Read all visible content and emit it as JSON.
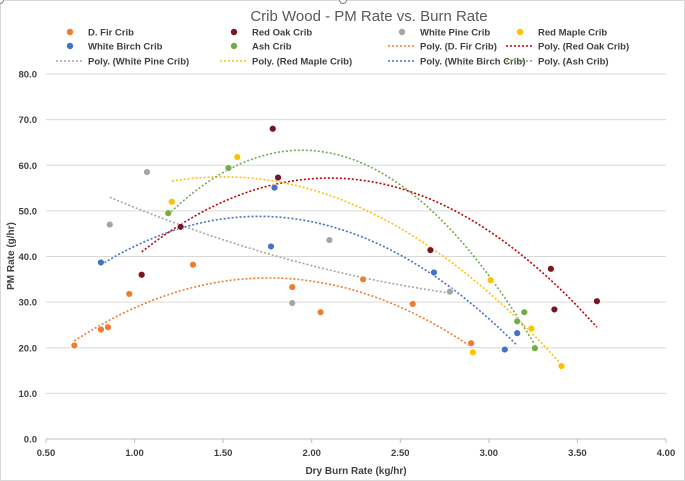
{
  "chart_data": {
    "type": "scatter",
    "title": "Crib Wood - PM Rate vs. Burn Rate",
    "xlabel": "Dry Burn Rate (kg/hr)",
    "ylabel": "PM Rate (g/hr)",
    "xlim": [
      0.5,
      4.0
    ],
    "ylim": [
      0.0,
      80.0
    ],
    "x_ticks": [
      "0.50",
      "1.00",
      "1.50",
      "2.00",
      "2.50",
      "3.00",
      "3.50",
      "4.00"
    ],
    "y_ticks": [
      "0.0",
      "10.0",
      "20.0",
      "30.0",
      "40.0",
      "50.0",
      "60.0",
      "70.0",
      "80.0"
    ],
    "grid": "horizontal",
    "legend": "top",
    "series": [
      {
        "name": "D. Fir Crib",
        "color": "#ed7d31",
        "points": [
          [
            0.66,
            20.5
          ],
          [
            0.81,
            24.0
          ],
          [
            0.85,
            24.5
          ],
          [
            0.97,
            31.8
          ],
          [
            1.33,
            38.2
          ],
          [
            1.89,
            33.3
          ],
          [
            2.05,
            27.8
          ],
          [
            2.29,
            35.0
          ],
          [
            2.57,
            29.6
          ],
          [
            2.9,
            21.0
          ]
        ]
      },
      {
        "name": "Red Oak Crib",
        "color": "#7b1423",
        "points": [
          [
            1.04,
            36.0
          ],
          [
            1.26,
            46.5
          ],
          [
            1.78,
            68.0
          ],
          [
            1.81,
            57.3
          ],
          [
            2.67,
            41.4
          ],
          [
            3.35,
            37.3
          ],
          [
            3.37,
            28.4
          ],
          [
            3.61,
            30.2
          ]
        ]
      },
      {
        "name": "White Pine Crib",
        "color": "#a5a5a5",
        "points": [
          [
            0.86,
            47.0
          ],
          [
            1.07,
            58.5
          ],
          [
            1.89,
            29.8
          ],
          [
            2.1,
            43.6
          ],
          [
            2.78,
            32.3
          ]
        ]
      },
      {
        "name": "Red Maple Crib",
        "color": "#ffc000",
        "points": [
          [
            1.21,
            52.0
          ],
          [
            1.58,
            61.8
          ],
          [
            2.91,
            19.0
          ],
          [
            3.01,
            34.8
          ],
          [
            3.24,
            24.2
          ],
          [
            3.41,
            16.0
          ]
        ]
      },
      {
        "name": "White Birch Crib",
        "color": "#4472c4",
        "points": [
          [
            0.81,
            38.7
          ],
          [
            1.77,
            42.2
          ],
          [
            1.79,
            55.1
          ],
          [
            2.69,
            36.5
          ],
          [
            3.09,
            19.6
          ],
          [
            3.16,
            23.2
          ]
        ]
      },
      {
        "name": "Ash Crib",
        "color": "#70ad47",
        "points": [
          [
            1.19,
            49.5
          ],
          [
            1.53,
            59.4
          ],
          [
            3.16,
            25.8
          ],
          [
            3.2,
            27.8
          ],
          [
            3.26,
            19.9
          ]
        ]
      }
    ],
    "trendlines": [
      {
        "name": "Poly. (D. Fir Crib)",
        "color": "#ed7d31",
        "order": 2,
        "x_range": [
          0.66,
          2.9
        ],
        "y_start": 21.5,
        "y_peak": 35.3,
        "x_peak": 1.75,
        "y_end": 20.2
      },
      {
        "name": "Poly. (Red Oak Crib)",
        "color": "#c00000",
        "order": 2,
        "x_range": [
          1.04,
          3.61
        ],
        "y_start": 41.0,
        "y_peak": 57.2,
        "x_peak": 2.1,
        "y_end": 24.5
      },
      {
        "name": "Poly. (White Pine Crib)",
        "color": "#a5a5a5",
        "order": 2,
        "x_range": [
          0.86,
          2.78
        ],
        "y_start": 53.0,
        "y_mid": 38.0,
        "x_mid": 2.0,
        "y_end": 32.0
      },
      {
        "name": "Poly. (Red Maple Crib)",
        "color": "#ffc000",
        "order": 2,
        "x_range": [
          1.21,
          3.41
        ],
        "y_start": 56.5,
        "y_peak": 57.0,
        "x_peak": 1.3,
        "y_end": 16.3
      },
      {
        "name": "Poly. (White Birch Crib)",
        "color": "#4472c4",
        "order": 2,
        "x_range": [
          0.81,
          3.16
        ],
        "y_start": 38.2,
        "y_peak": 48.8,
        "x_peak": 1.7,
        "y_end": 20.5
      },
      {
        "name": "Poly. (Ash Crib)",
        "color": "#70ad47",
        "order": 2,
        "x_range": [
          1.19,
          3.26
        ],
        "y_start": 49.2,
        "y_peak": 63.3,
        "x_peak": 1.95,
        "y_end": 20.6
      }
    ]
  }
}
